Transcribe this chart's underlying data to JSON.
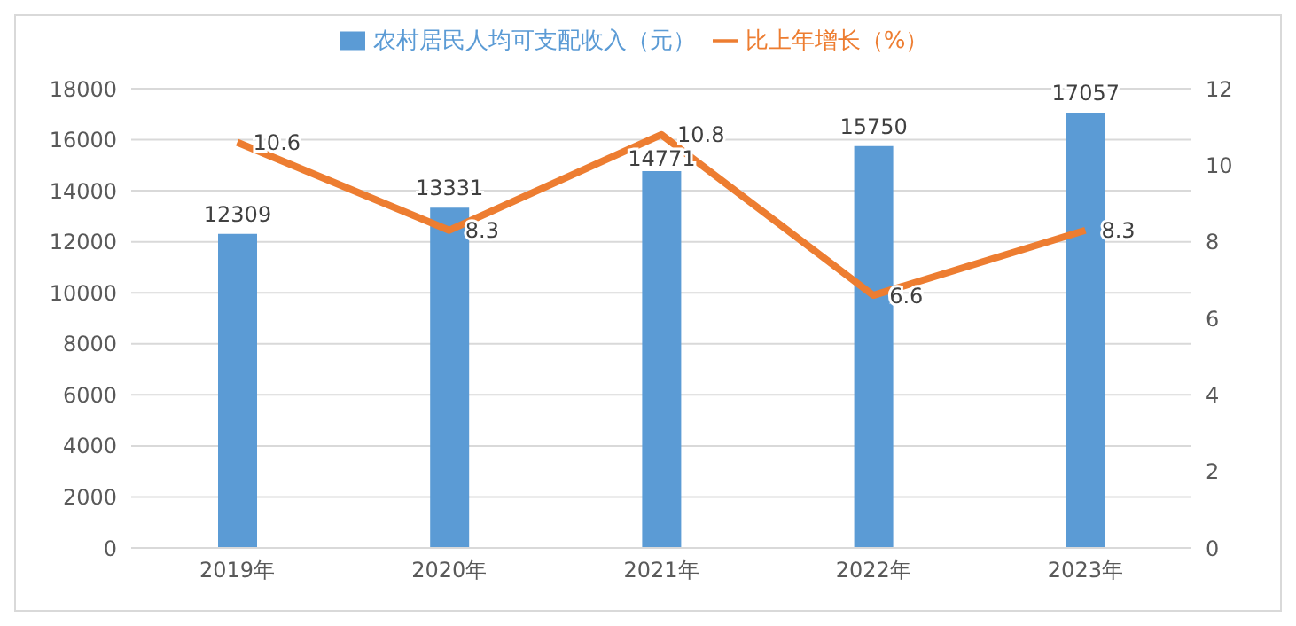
{
  "chart_data": {
    "type": "bar",
    "categories": [
      "2019年",
      "2020年",
      "2021年",
      "2022年",
      "2023年"
    ],
    "series": [
      {
        "name": "农村居民人均可支配收入（元）",
        "color": "#5b9bd5",
        "values": [
          12309,
          13331,
          14771,
          15750,
          17057
        ]
      },
      {
        "name": "比上年增长（%）",
        "type": "line",
        "axis": "y2",
        "color": "#ed7d31",
        "values": [
          10.6,
          8.3,
          10.8,
          6.6,
          8.3
        ]
      }
    ],
    "ylim": [
      0,
      18000
    ],
    "yticks": [
      0,
      2000,
      4000,
      6000,
      8000,
      10000,
      12000,
      14000,
      16000,
      18000
    ],
    "y2lim": [
      0,
      12
    ],
    "y2ticks": [
      0,
      2,
      4,
      6,
      8,
      10,
      12
    ],
    "grid": "y",
    "legend": "top",
    "data_labels": true,
    "marker": "none",
    "line_style": "solid"
  }
}
